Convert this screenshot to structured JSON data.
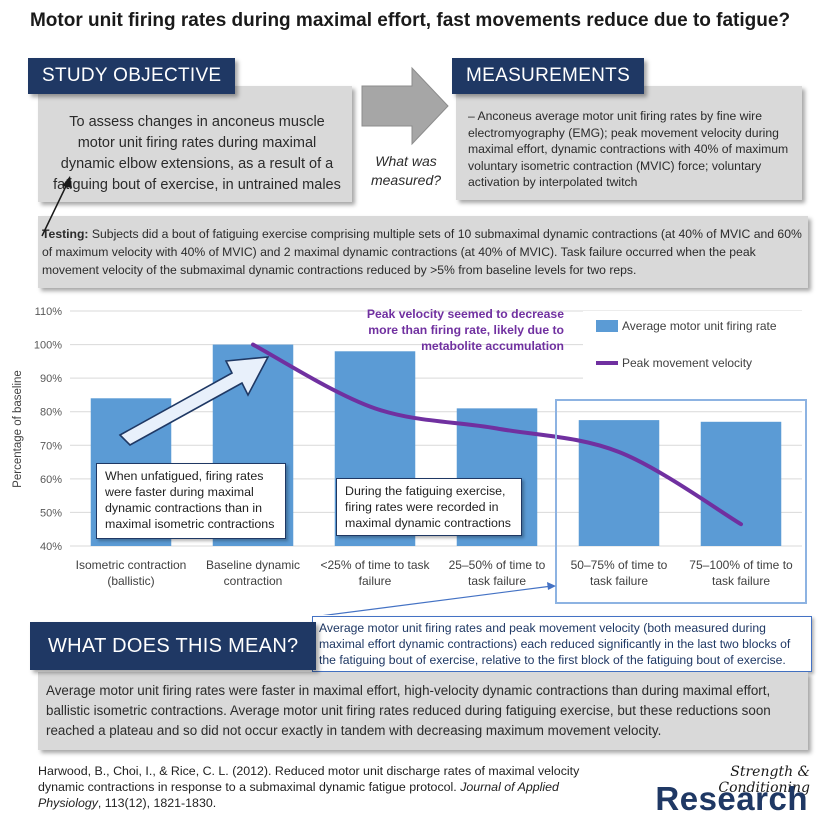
{
  "title": "Motor unit firing rates during maximal effort, fast movements reduce due to fatigue?",
  "objective": {
    "tab_label": "STUDY OBJECTIVE",
    "text": "To assess changes in anconeus muscle motor unit firing rates during maximal dynamic elbow extensions, as a result of a fatiguing bout of exercise, in untrained males"
  },
  "connector": {
    "question": "What was measured?"
  },
  "measurements": {
    "tab_label": "MEASUREMENTS",
    "text": "– Anconeus average motor unit firing rates by fine wire electromyography (EMG); peak movement velocity during maximal effort, dynamic contractions with 40% of maximum voluntary isometric contraction (MVIC) force; voluntary activation by interpolated twitch"
  },
  "testing": {
    "label": "Testing:",
    "text": " Subjects did a bout of fatiguing exercise comprising multiple sets of 10 submaximal dynamic contractions (at 40% of MVIC and 60% of maximum velocity with 40% of MVIC) and 2 maximal dynamic contractions (at 40% of MVIC).  Task failure occurred when the peak movement velocity of the submaximal dynamic contractions reduced by >5% from baseline levels for two reps."
  },
  "chart_data": {
    "type": "bar",
    "ylabel": "Percentage of baseline",
    "ylim": [
      40,
      110
    ],
    "yticks": [
      "40%",
      "50%",
      "60%",
      "70%",
      "80%",
      "90%",
      "100%",
      "110%"
    ],
    "categories": [
      [
        "Isometric contraction",
        "(ballistic)"
      ],
      [
        "Baseline dynamic",
        "contraction"
      ],
      [
        "<25% of time to task",
        "failure"
      ],
      [
        "25–50% of time to",
        "task failure"
      ],
      [
        "50–75% of time to",
        "task failure"
      ],
      [
        "75–100% of time to",
        "task failure"
      ]
    ],
    "series": [
      {
        "name": "Average motor unit firing rate",
        "kind": "bar",
        "color": "#5b9bd5",
        "values": [
          84,
          100,
          98,
          81,
          77.5,
          77
        ]
      },
      {
        "name": "Peak movement velocity",
        "kind": "line",
        "color": "#7030a0",
        "x": [
          1,
          2,
          3,
          4,
          5
        ],
        "values": [
          100,
          81,
          75,
          68,
          46.5
        ]
      }
    ],
    "grid": "horizontal",
    "legend": "top-right"
  },
  "annotations": {
    "peak_note": "Peak velocity seemed to decrease more than firing rate, likely due to metabolite accumulation",
    "unfatigued": "When unfatigued, firing rates were faster during maximal dynamic contractions than in maximal isometric contractions",
    "fatiguing": "During the fatiguing exercise, firing rates were recorded in maximal dynamic contractions",
    "result": "Average motor unit firing rates and peak movement velocity (both measured during maximal effort dynamic contractions) each reduced significantly in the last two blocks of the fatiguing bout of exercise, relative to the first block of the fatiguing bout of exercise."
  },
  "meaning": {
    "tab_label": "WHAT DOES THIS MEAN?",
    "text": "Average motor unit firing rates were faster in maximal effort, high-velocity dynamic contractions than during maximal effort, ballistic isometric contractions. Average motor unit firing rates reduced during fatiguing exercise, but these reductions soon reached a plateau and so did not occur exactly in tandem with decreasing maximum movement velocity."
  },
  "citation": {
    "text_before": "Harwood, B., Choi, I., & Rice, C. L. (2012). Reduced motor unit discharge rates of maximal velocity dynamic contractions in response to a submaximal dynamic fatigue protocol. ",
    "journal": "Journal of Applied Physiology",
    "text_after": ", 113(12), 1821-1830."
  },
  "brand": {
    "top": "Strength & Conditioning",
    "main": "Research"
  },
  "colors": {
    "navy": "#1f3864",
    "bar": "#5b9bd5",
    "line": "#7030a0",
    "grey_box": "#d9d9d9",
    "highlight": "#4472c4"
  }
}
